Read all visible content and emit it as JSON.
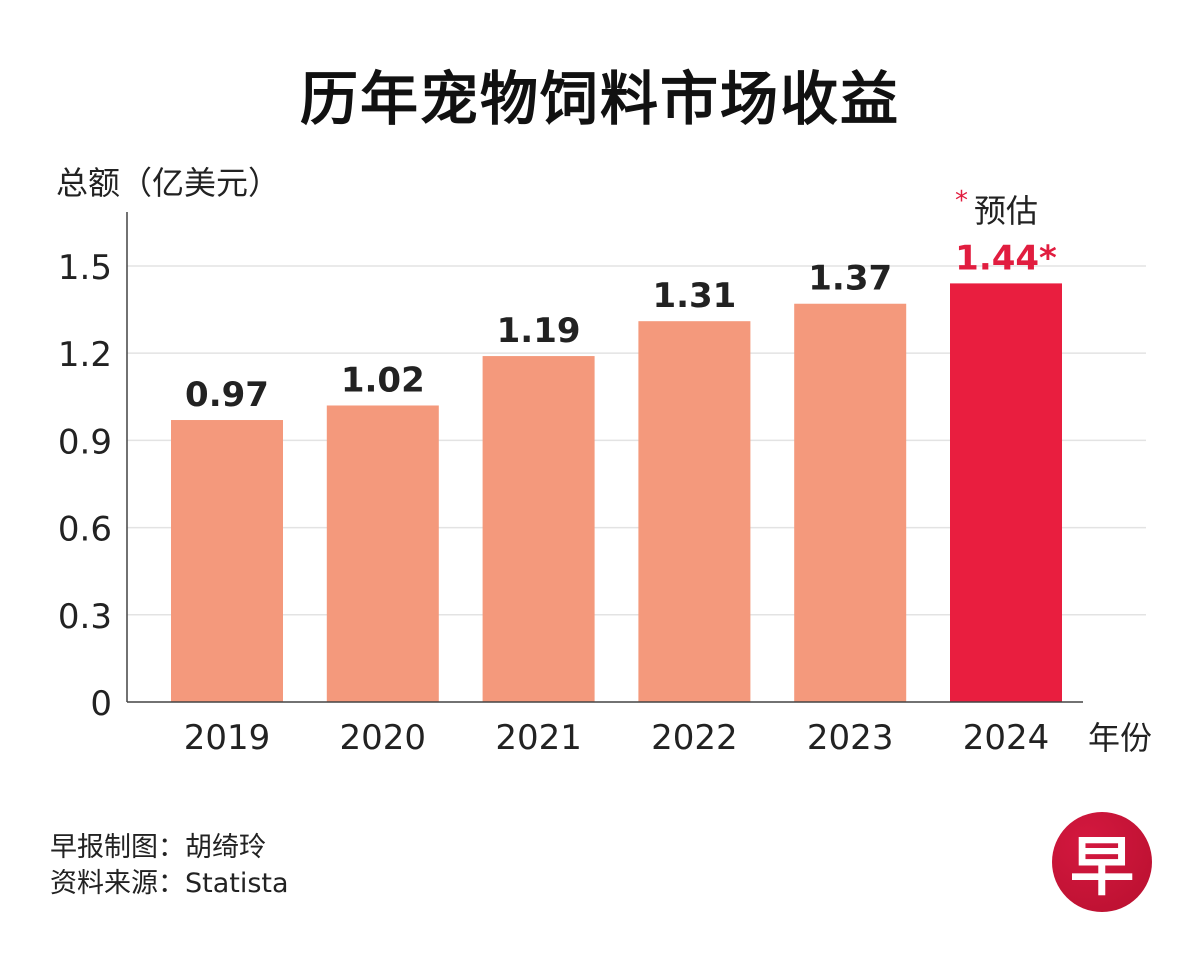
{
  "chart_data": {
    "type": "bar",
    "title": "历年宠物饲料市场收益",
    "ylabel": "总额（亿美元）",
    "xlabel": "年份",
    "categories": [
      "2019",
      "2020",
      "2021",
      "2022",
      "2023",
      "2024"
    ],
    "values": [
      0.97,
      1.02,
      1.19,
      1.31,
      1.37,
      1.44
    ],
    "value_labels": [
      "0.97",
      "1.02",
      "1.19",
      "1.31",
      "1.37",
      "1.44*"
    ],
    "estimated": [
      false,
      false,
      false,
      false,
      false,
      true
    ],
    "ylim": [
      0,
      1.65
    ],
    "yticks": [
      0,
      0.3,
      0.6,
      0.9,
      1.2,
      1.5
    ],
    "ytick_labels": [
      "0",
      "0.3",
      "0.6",
      "0.9",
      "1.2",
      "1.5"
    ],
    "grid": true,
    "colors": {
      "actual": "#f4997c",
      "estimate": "#e91e3f",
      "estimate_label": "#e11d3f",
      "grid": "#e3e3e3",
      "axis": "#444444"
    },
    "note": {
      "marker": "*",
      "text": "预估"
    }
  },
  "credits": {
    "line1": "早报制图：胡绮玲",
    "line2": "资料来源：Statista"
  },
  "logo": {
    "glyph": "早"
  }
}
